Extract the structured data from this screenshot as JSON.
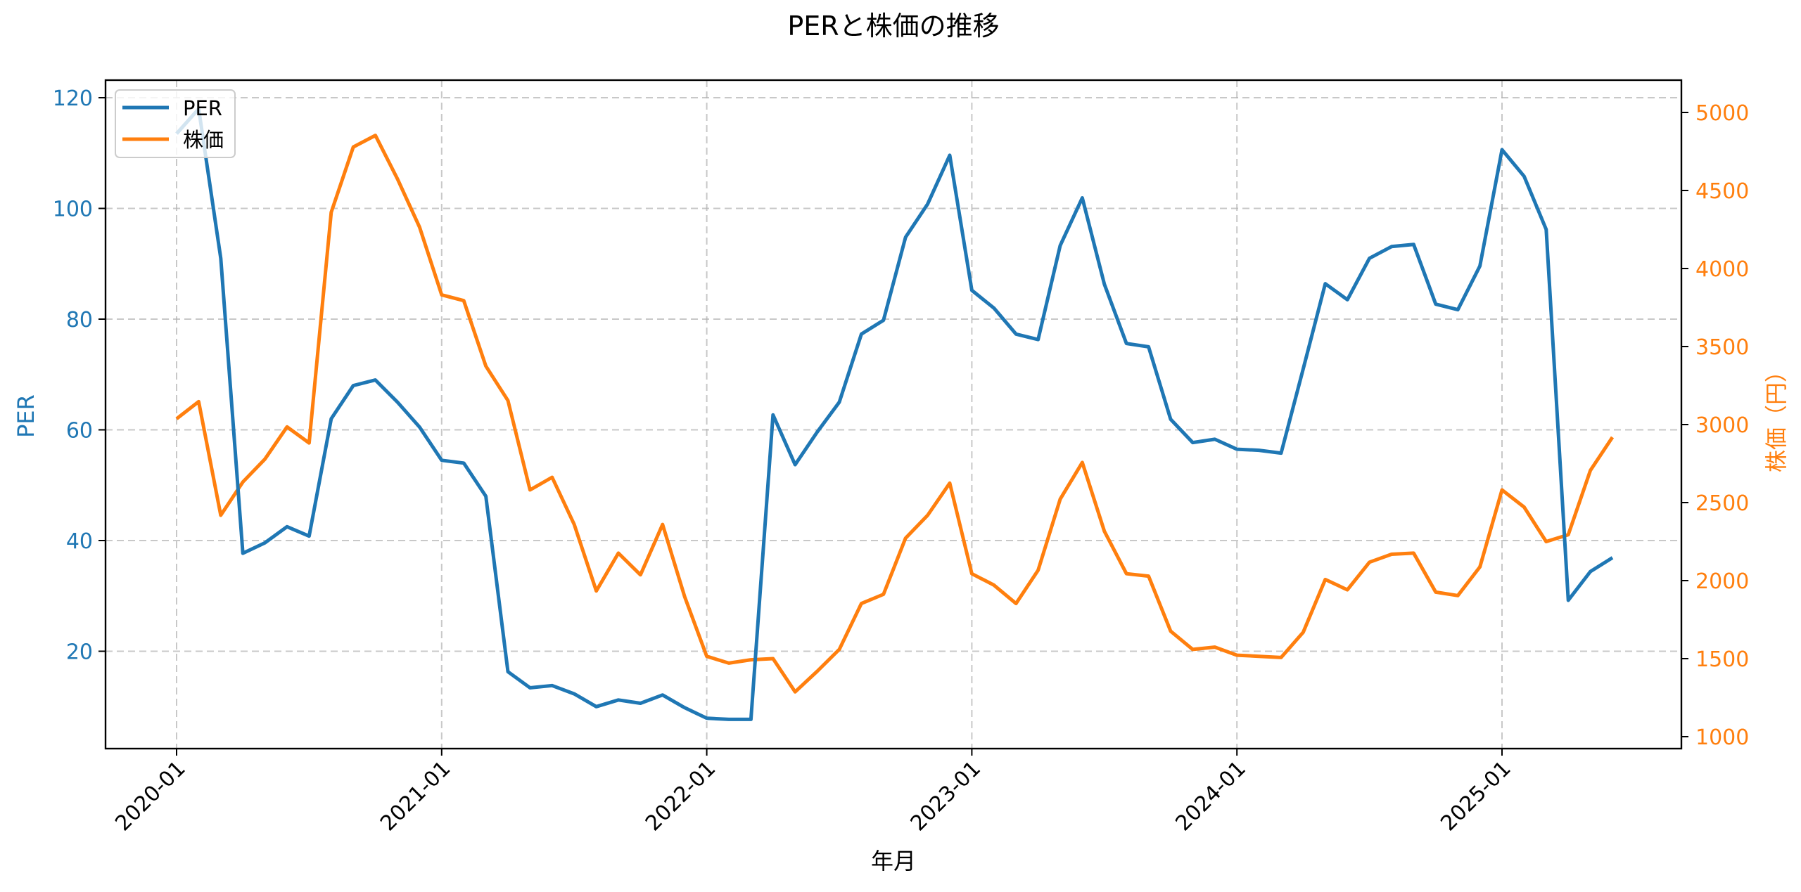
{
  "chart_data": {
    "type": "line",
    "title": "PERと株価の推移",
    "xlabel": "年月",
    "ylabel": "PER",
    "ylabel_right": "株価（円）",
    "ylim": [
      2.1,
      123.3
    ],
    "ylim_right": [
      930,
      5410
    ],
    "grid": true,
    "legend_position": "upper left",
    "x_tick_labels": [
      "2020-01",
      "2021-01",
      "2022-01",
      "2023-01",
      "2024-01",
      "2025-01"
    ],
    "y_ticks": [
      20,
      40,
      60,
      80,
      100,
      120
    ],
    "y_ticks_right": [
      1000,
      1500,
      2000,
      2500,
      3000,
      3500,
      4000,
      4500,
      5000
    ],
    "x": [
      "2020-01",
      "2020-02",
      "2020-03",
      "2020-04",
      "2020-05",
      "2020-06",
      "2020-07",
      "2020-08",
      "2020-09",
      "2020-10",
      "2020-11",
      "2020-12",
      "2021-01",
      "2021-02",
      "2021-03",
      "2021-04",
      "2021-05",
      "2021-06",
      "2021-07",
      "2021-08",
      "2021-09",
      "2021-10",
      "2021-11",
      "2021-12",
      "2022-01",
      "2022-02",
      "2022-03",
      "2022-04",
      "2022-05",
      "2022-06",
      "2022-07",
      "2022-08",
      "2022-09",
      "2022-10",
      "2022-11",
      "2022-12",
      "2023-01",
      "2023-02",
      "2023-03",
      "2023-04",
      "2023-05",
      "2023-06",
      "2023-07",
      "2023-08",
      "2023-09",
      "2023-10",
      "2023-11",
      "2023-12",
      "2024-01",
      "2024-02",
      "2024-03",
      "2024-04",
      "2024-05",
      "2024-06",
      "2024-07",
      "2024-08",
      "2024-09",
      "2024-10",
      "2024-11",
      "2024-12",
      "2025-01",
      "2025-02",
      "2025-03",
      "2025-04",
      "2025-05",
      "2025-06"
    ],
    "series": [
      {
        "name": "PER",
        "axis": "left",
        "color": "#1f77b4",
        "values": [
          113.5,
          118.0,
          91.0,
          37.7,
          39.6,
          42.5,
          40.8,
          62.0,
          68.0,
          69.0,
          65.0,
          60.5,
          54.5,
          54.0,
          48.0,
          16.3,
          13.4,
          13.8,
          12.3,
          10.0,
          11.2,
          10.6,
          12.1,
          9.8,
          7.9,
          7.7,
          7.7,
          62.7,
          53.7,
          59.6,
          65.0,
          77.3,
          79.8,
          94.8,
          100.8,
          109.6,
          85.2,
          82.0,
          77.3,
          76.3,
          93.3,
          101.9,
          86.3,
          75.6,
          75.0,
          61.9,
          57.7,
          58.3,
          56.5,
          56.3,
          55.8,
          71.0,
          86.4,
          83.5,
          91.0,
          93.1,
          93.5,
          82.7,
          81.7,
          89.6,
          110.6,
          105.8,
          96.2,
          29.2,
          34.4,
          36.9
        ]
      },
      {
        "name": "株価",
        "axis": "right",
        "color": "#ff7f0e",
        "values": [
          3037,
          3147,
          2419,
          2632,
          2779,
          2985,
          2882,
          4360,
          4779,
          4853,
          4574,
          4265,
          3831,
          3794,
          3375,
          3154,
          2581,
          2662,
          2360,
          1934,
          2176,
          2037,
          2360,
          1897,
          1515,
          1471,
          1493,
          1500,
          1287,
          1419,
          1559,
          1853,
          1912,
          2272,
          2419,
          2625,
          2044,
          1971,
          1853,
          2066,
          2522,
          2757,
          2316,
          2044,
          2029,
          1676,
          1559,
          1574,
          1522,
          1515,
          1507,
          1669,
          2007,
          1941,
          2118,
          2169,
          2176,
          1926,
          1904,
          2088,
          2581,
          2471,
          2250,
          2294,
          2706,
          2919
        ]
      }
    ]
  },
  "legend": {
    "items": [
      {
        "label": "PER",
        "color": "#1f77b4"
      },
      {
        "label": "株価",
        "color": "#ff7f0e"
      }
    ]
  },
  "colors": {
    "per": "#1f77b4",
    "price": "#ff7f0e",
    "grid": "#b0b0b0",
    "axis": "#000000"
  }
}
